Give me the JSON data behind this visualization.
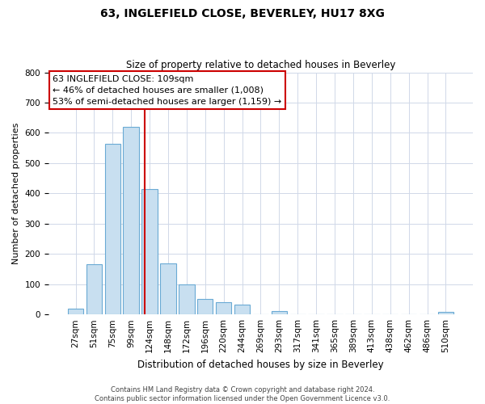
{
  "title": "63, INGLEFIELD CLOSE, BEVERLEY, HU17 8XG",
  "subtitle": "Size of property relative to detached houses in Beverley",
  "xlabel": "Distribution of detached houses by size in Beverley",
  "ylabel": "Number of detached properties",
  "bar_labels": [
    "27sqm",
    "51sqm",
    "75sqm",
    "99sqm",
    "124sqm",
    "148sqm",
    "172sqm",
    "196sqm",
    "220sqm",
    "244sqm",
    "269sqm",
    "293sqm",
    "317sqm",
    "341sqm",
    "365sqm",
    "389sqm",
    "413sqm",
    "438sqm",
    "462sqm",
    "486sqm",
    "510sqm"
  ],
  "bar_values": [
    20,
    165,
    565,
    620,
    415,
    170,
    100,
    50,
    40,
    33,
    0,
    12,
    0,
    0,
    0,
    0,
    0,
    0,
    0,
    0,
    8
  ],
  "bar_color": "#c8dff0",
  "bar_edge_color": "#6aaad4",
  "vline_x": 3.75,
  "vline_color": "#cc0000",
  "annotation_lines": [
    "63 INGLEFIELD CLOSE: 109sqm",
    "← 46% of detached houses are smaller (1,008)",
    "53% of semi-detached houses are larger (1,159) →"
  ],
  "annotation_box_edge_color": "#cc0000",
  "annotation_box_face_color": "#ffffff",
  "ylim": [
    0,
    800
  ],
  "yticks": [
    0,
    100,
    200,
    300,
    400,
    500,
    600,
    700,
    800
  ],
  "footer_line1": "Contains HM Land Registry data © Crown copyright and database right 2024.",
  "footer_line2": "Contains public sector information licensed under the Open Government Licence v3.0.",
  "background_color": "#ffffff",
  "grid_color": "#d0d8e8",
  "title_fontsize": 10,
  "subtitle_fontsize": 8.5,
  "xlabel_fontsize": 8.5,
  "ylabel_fontsize": 8,
  "tick_fontsize": 7.5,
  "footer_fontsize": 6,
  "annotation_fontsize": 8
}
